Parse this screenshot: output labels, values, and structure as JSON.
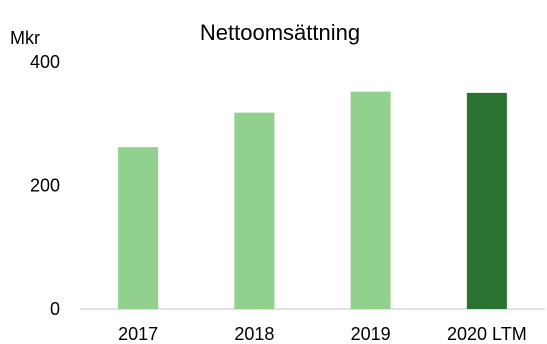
{
  "chart_data": {
    "type": "bar",
    "title": "Nettoomsättning",
    "ylabel": "Mkr",
    "xlabel": "",
    "categories": [
      "2017",
      "2018",
      "2019",
      "2020 LTM"
    ],
    "values": [
      262,
      318,
      352,
      350
    ],
    "bar_colors": [
      "#92d08d",
      "#92d08d",
      "#92d08d",
      "#2a722f"
    ],
    "ylim": [
      0,
      400
    ],
    "yticks": [
      "0",
      "200",
      "400"
    ],
    "grid": false,
    "legend": "none"
  }
}
